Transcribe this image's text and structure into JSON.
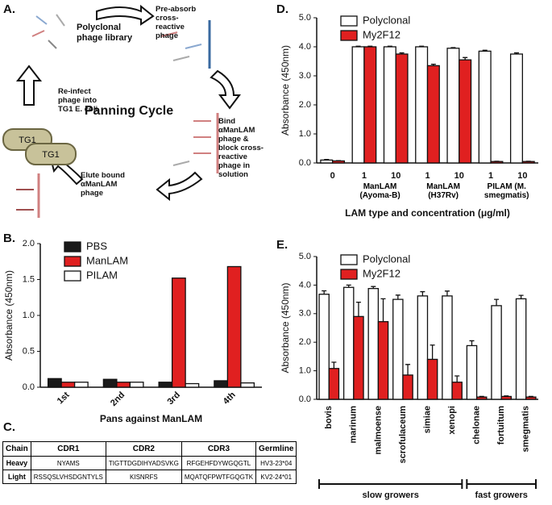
{
  "panel_labels": [
    "A.",
    "B.",
    "C.",
    "D.",
    "E."
  ],
  "diagram": {
    "title": "Panning Cycle",
    "steps": [
      "Polyclonal phage library",
      "Pre-absorb cross-reactive phage",
      "Bind αManLAM phage & block cross-reactive phage in solution",
      "Elute bound αManLAM phage",
      "Re-infect phage into TG1 E. coli"
    ],
    "cells": [
      "TG1",
      "TG1"
    ]
  },
  "table": {
    "header": [
      "Chain",
      "CDR1",
      "CDR2",
      "CDR3",
      "Germline"
    ],
    "rows": [
      [
        "Heavy",
        "NYAMS",
        "TIGTTDGDIHYADSVKG",
        "RFGEHFDYWGQGTL",
        "HV3-23*04"
      ],
      [
        "Light",
        "RSSQSLVHSDGNTYLS",
        "KISNRFS",
        "MQATQFPWTFGQGTK",
        "KV2-24*01"
      ]
    ]
  },
  "chart_data": [
    {
      "type": "bar",
      "y_label": "Absorbance (450nm)",
      "x_label": "Pans against ManLAM",
      "categories": [
        "1st",
        "2nd",
        "3rd",
        "4th"
      ],
      "series": [
        {
          "name": "PBS",
          "color": "#1a1a1a",
          "values": [
            0.12,
            0.11,
            0.07,
            0.09
          ]
        },
        {
          "name": "ManLAM",
          "color": "#e02020",
          "values": [
            0.07,
            0.07,
            1.52,
            1.68
          ]
        },
        {
          "name": "PILAM",
          "color": "#ffffff",
          "values": [
            0.07,
            0.07,
            0.05,
            0.06
          ]
        }
      ],
      "ylim": [
        0,
        2
      ],
      "yticks": [
        {
          "value": 0,
          "label": "0.0"
        },
        0.5,
        {
          "value": 1,
          "label": "1.0"
        },
        1.5,
        {
          "value": 2,
          "label": "2.0"
        }
      ],
      "legend": "top-left"
    },
    {
      "type": "bar",
      "y_label": "Absorbance (450nm)",
      "x_label": "LAM type and concentration (μg/ml)",
      "categories": [
        "0",
        "1",
        "10",
        "1",
        "10",
        "1",
        "10"
      ],
      "groups": [
        {
          "name": "ManLAM (Ayoma-B)",
          "start": 1,
          "count": 2
        },
        {
          "name": "ManLAM (H37Rv)",
          "start": 3,
          "count": 2
        },
        {
          "name": "PILAM (M. smegmatis)",
          "start": 5,
          "count": 2
        }
      ],
      "series": [
        {
          "name": "Polyclonal",
          "color": "#ffffff",
          "values": [
            0.1,
            4.0,
            4.0,
            4.0,
            3.95,
            3.85,
            3.75
          ],
          "errors": [
            0.02,
            0.02,
            0.02,
            0.02,
            0.02,
            0.03,
            0.04
          ]
        },
        {
          "name": "My2F12",
          "color": "#e02020",
          "values": [
            0.07,
            4.0,
            3.75,
            3.35,
            3.55,
            0.05,
            0.05
          ],
          "errors": [
            0.01,
            0.02,
            0.04,
            0.05,
            0.08,
            0.01,
            0.01
          ]
        }
      ],
      "ylim": [
        0,
        5
      ],
      "yticks": [
        {
          "value": 0,
          "label": "0.0"
        },
        {
          "value": 1,
          "label": "1.0"
        },
        {
          "value": 2,
          "label": "2.0"
        },
        {
          "value": 3,
          "label": "3.0"
        },
        {
          "value": 4,
          "label": "4.0"
        },
        {
          "value": 5,
          "label": "5.0"
        }
      ],
      "legend": "top-left"
    },
    {
      "type": "bar",
      "y_label": "Absorbance (450nm)",
      "categories": [
        "bovis",
        "marinum",
        "malmoense",
        "scrofulaceum",
        "simiae",
        "xenopi",
        "chelonae",
        "fortuitum",
        "smegmatis"
      ],
      "groups": [
        {
          "name": "slow growers",
          "start": 0,
          "count": 6
        },
        {
          "name": "fast growers",
          "start": 6,
          "count": 3
        }
      ],
      "series": [
        {
          "name": "Polyclonal",
          "color": "#ffffff",
          "values": [
            3.68,
            3.92,
            3.88,
            3.5,
            3.62,
            3.62,
            1.88,
            3.28,
            3.52
          ],
          "errors": [
            0.12,
            0.08,
            0.07,
            0.15,
            0.15,
            0.17,
            0.17,
            0.22,
            0.12
          ]
        },
        {
          "name": "My2F12",
          "color": "#e02020",
          "values": [
            1.08,
            2.9,
            2.72,
            0.85,
            1.4,
            0.6,
            0.08,
            0.1,
            0.08
          ],
          "errors": [
            0.22,
            0.5,
            0.8,
            0.37,
            0.5,
            0.22,
            0.02,
            0.02,
            0.02
          ]
        }
      ],
      "ylim": [
        0,
        5
      ],
      "yticks": [
        {
          "value": 0,
          "label": "0.0"
        },
        {
          "value": 1,
          "label": "1.0"
        },
        {
          "value": 2,
          "label": "2.0"
        },
        {
          "value": 3,
          "label": "3.0"
        },
        {
          "value": 4,
          "label": "4.0"
        },
        {
          "value": 5,
          "label": "5.0"
        }
      ],
      "legend": "top-left"
    }
  ]
}
